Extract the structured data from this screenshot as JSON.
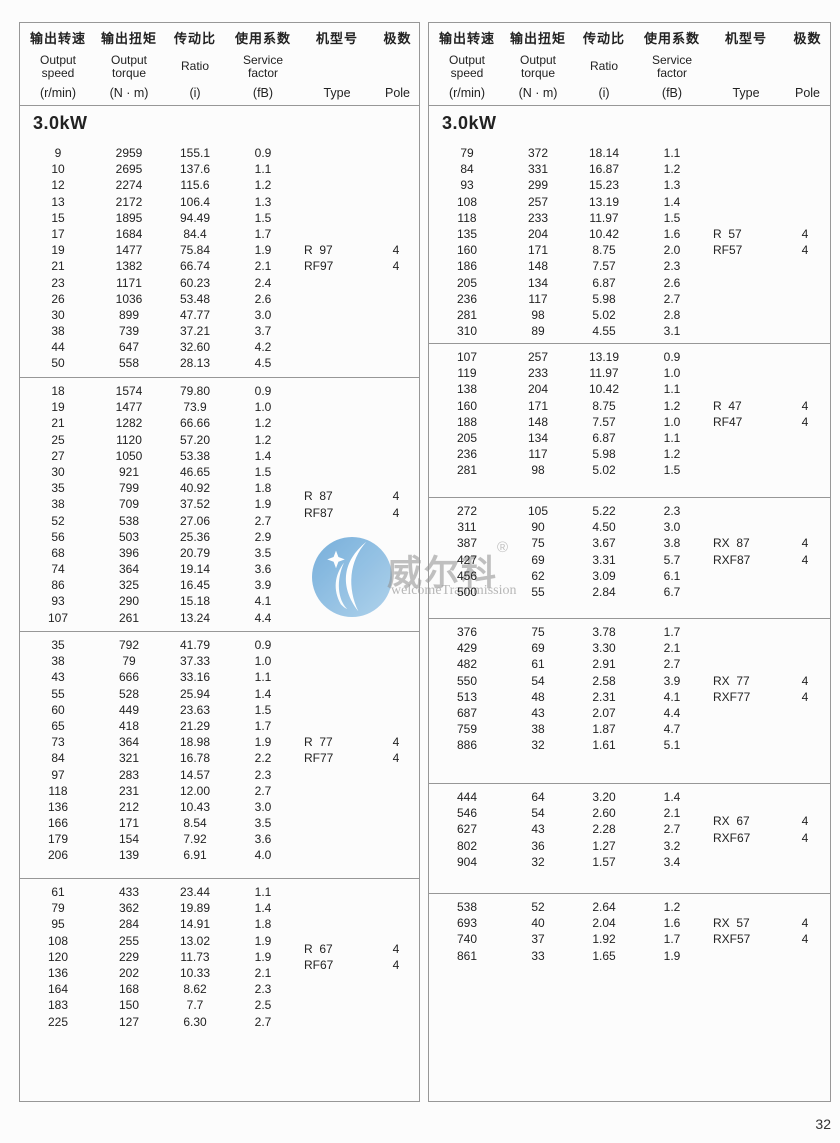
{
  "page": {
    "number": "32"
  },
  "header": {
    "columns": [
      {
        "zh": "输出转速",
        "en": "Output\nspeed",
        "unit": "(r/min)"
      },
      {
        "zh": "输出扭矩",
        "en": "Output\ntorque",
        "unit": "(N · m)"
      },
      {
        "zh": "传动比",
        "en": "Ratio",
        "unit": "(i)"
      },
      {
        "zh": "使用系数",
        "en": "Service\nfactor",
        "unit": "(fB)"
      },
      {
        "zh": "机型号",
        "en": "",
        "unit": "Type"
      },
      {
        "zh": "极数",
        "en": "",
        "unit": "Pole"
      }
    ]
  },
  "watermark": {
    "brand": "威尔科",
    "reg": "®",
    "subtitle": "welcomeTransmission",
    "logo_color": "#79b1dd"
  },
  "tables": [
    {
      "power": "3.0kW",
      "blocks": [
        {
          "rows": [
            [
              "9",
              "2959",
              "155.1",
              "0.9"
            ],
            [
              "10",
              "2695",
              "137.6",
              "1.1"
            ],
            [
              "12",
              "2274",
              "115.6",
              "1.2"
            ],
            [
              "13",
              "2172",
              "106.4",
              "1.3"
            ],
            [
              "15",
              "1895",
              "94.49",
              "1.5"
            ],
            [
              "17",
              "1684",
              "84.4",
              "1.7"
            ],
            [
              "19",
              "1477",
              "75.84",
              "1.9"
            ],
            [
              "21",
              "1382",
              "66.74",
              "2.1"
            ],
            [
              "23",
              "1171",
              "60.23",
              "2.4"
            ],
            [
              "26",
              "1036",
              "53.48",
              "2.6"
            ],
            [
              "30",
              "899",
              "47.77",
              "3.0"
            ],
            [
              "38",
              "739",
              "37.21",
              "3.7"
            ],
            [
              "44",
              "647",
              "32.60",
              "4.2"
            ],
            [
              "50",
              "558",
              "28.13",
              "4.5"
            ]
          ],
          "types": [
            {
              "label": "R  97",
              "pole": "4",
              "row": 6
            },
            {
              "label": "RF97",
              "pole": "4",
              "row": 7
            }
          ]
        },
        {
          "rows": [
            [
              "18",
              "1574",
              "79.80",
              "0.9"
            ],
            [
              "19",
              "1477",
              "73.9",
              "1.0"
            ],
            [
              "21",
              "1282",
              "66.66",
              "1.2"
            ],
            [
              "25",
              "1120",
              "57.20",
              "1.2"
            ],
            [
              "27",
              "1050",
              "53.38",
              "1.4"
            ],
            [
              "30",
              "921",
              "46.65",
              "1.5"
            ],
            [
              "35",
              "799",
              "40.92",
              "1.8"
            ],
            [
              "38",
              "709",
              "37.52",
              "1.9"
            ],
            [
              "52",
              "538",
              "27.06",
              "2.7"
            ],
            [
              "56",
              "503",
              "25.36",
              "2.9"
            ],
            [
              "68",
              "396",
              "20.79",
              "3.5"
            ],
            [
              "74",
              "364",
              "19.14",
              "3.6"
            ],
            [
              "86",
              "325",
              "16.45",
              "3.9"
            ],
            [
              "93",
              "290",
              "15.18",
              "4.1"
            ],
            [
              "107",
              "261",
              "13.24",
              "4.4"
            ]
          ],
          "types": [
            {
              "label": "R  87",
              "pole": "4",
              "row": 6.5
            },
            {
              "label": "RF87",
              "pole": "4",
              "row": 7.5
            }
          ]
        },
        {
          "rows": [
            [
              "35",
              "792",
              "41.79",
              "0.9"
            ],
            [
              "38",
              "79",
              "37.33",
              "1.0"
            ],
            [
              "43",
              "666",
              "33.16",
              "1.1"
            ],
            [
              "55",
              "528",
              "25.94",
              "1.4"
            ],
            [
              "60",
              "449",
              "23.63",
              "1.5"
            ],
            [
              "65",
              "418",
              "21.29",
              "1.7"
            ],
            [
              "73",
              "364",
              "18.98",
              "1.9"
            ],
            [
              "84",
              "321",
              "16.78",
              "2.2"
            ],
            [
              "97",
              "283",
              "14.57",
              "2.3"
            ],
            [
              "118",
              "231",
              "12.00",
              "2.7"
            ],
            [
              "136",
              "212",
              "10.43",
              "3.0"
            ],
            [
              "166",
              "171",
              "8.54",
              "3.5"
            ],
            [
              "179",
              "154",
              "7.92",
              "3.6"
            ],
            [
              "206",
              "139",
              "6.91",
              "4.0"
            ]
          ],
          "types": [
            {
              "label": "R  77",
              "pole": "4",
              "row": 6
            },
            {
              "label": "RF77",
              "pole": "4",
              "row": 7
            }
          ]
        },
        {
          "rows": [
            [
              "61",
              "433",
              "23.44",
              "1.1"
            ],
            [
              "79",
              "362",
              "19.89",
              "1.4"
            ],
            [
              "95",
              "284",
              "14.91",
              "1.8"
            ],
            [
              "108",
              "255",
              "13.02",
              "1.9"
            ],
            [
              "120",
              "229",
              "11.73",
              "1.9"
            ],
            [
              "136",
              "202",
              "10.33",
              "2.1"
            ],
            [
              "164",
              "168",
              "8.62",
              "2.3"
            ],
            [
              "183",
              "150",
              "7.7",
              "2.5"
            ],
            [
              "225",
              "127",
              "6.30",
              "2.7"
            ]
          ],
          "types": [
            {
              "label": "R  67",
              "pole": "4",
              "row": 3.5
            },
            {
              "label": "RF67",
              "pole": "4",
              "row": 4.5
            }
          ]
        }
      ]
    },
    {
      "power": "3.0kW",
      "blocks": [
        {
          "rows": [
            [
              "79",
              "372",
              "18.14",
              "1.1"
            ],
            [
              "84",
              "331",
              "16.87",
              "1.2"
            ],
            [
              "93",
              "299",
              "15.23",
              "1.3"
            ],
            [
              "108",
              "257",
              "13.19",
              "1.4"
            ],
            [
              "118",
              "233",
              "11.97",
              "1.5"
            ],
            [
              "135",
              "204",
              "10.42",
              "1.6"
            ],
            [
              "160",
              "171",
              "8.75",
              "2.0"
            ],
            [
              "186",
              "148",
              "7.57",
              "2.3"
            ],
            [
              "205",
              "134",
              "6.87",
              "2.6"
            ],
            [
              "236",
              "117",
              "5.98",
              "2.7"
            ],
            [
              "281",
              "98",
              "5.02",
              "2.8"
            ],
            [
              "310",
              "89",
              "4.55",
              "3.1"
            ]
          ],
          "types": [
            {
              "label": "R  57",
              "pole": "4",
              "row": 5
            },
            {
              "label": "RF57",
              "pole": "4",
              "row": 6
            }
          ]
        },
        {
          "rows": [
            [
              "107",
              "257",
              "13.19",
              "0.9"
            ],
            [
              "119",
              "233",
              "11.97",
              "1.0"
            ],
            [
              "138",
              "204",
              "10.42",
              "1.1"
            ],
            [
              "160",
              "171",
              "8.75",
              "1.2"
            ],
            [
              "188",
              "148",
              "7.57",
              "1.0"
            ],
            [
              "205",
              "134",
              "6.87",
              "1.1"
            ],
            [
              "236",
              "117",
              "5.98",
              "1.2"
            ],
            [
              "281",
              "98",
              "5.02",
              "1.5"
            ]
          ],
          "types": [
            {
              "label": "R  47",
              "pole": "4",
              "row": 3
            },
            {
              "label": "RF47",
              "pole": "4",
              "row": 4
            }
          ]
        },
        {
          "rows": [
            [
              "272",
              "105",
              "5.22",
              "2.3"
            ],
            [
              "311",
              "90",
              "4.50",
              "3.0"
            ],
            [
              "387",
              "75",
              "3.67",
              "3.8"
            ],
            [
              "427",
              "69",
              "3.31",
              "5.7"
            ],
            [
              "456",
              "62",
              "3.09",
              "6.1"
            ],
            [
              "500",
              "55",
              "2.84",
              "6.7"
            ]
          ],
          "types": [
            {
              "label": "RX  87",
              "pole": "4",
              "row": 2
            },
            {
              "label": "RXF87",
              "pole": "4",
              "row": 3
            }
          ]
        },
        {
          "rows": [
            [
              "376",
              "75",
              "3.78",
              "1.7"
            ],
            [
              "429",
              "69",
              "3.30",
              "2.1"
            ],
            [
              "482",
              "61",
              "2.91",
              "2.7"
            ],
            [
              "550",
              "54",
              "2.58",
              "3.9"
            ],
            [
              "513",
              "48",
              "2.31",
              "4.1"
            ],
            [
              "687",
              "43",
              "2.07",
              "4.4"
            ],
            [
              "759",
              "38",
              "1.87",
              "4.7"
            ],
            [
              "886",
              "32",
              "1.61",
              "5.1"
            ]
          ],
          "types": [
            {
              "label": "RX  77",
              "pole": "4",
              "row": 3
            },
            {
              "label": "RXF77",
              "pole": "4",
              "row": 4
            }
          ]
        },
        {
          "rows": [
            [
              "444",
              "64",
              "3.20",
              "1.4"
            ],
            [
              "546",
              "54",
              "2.60",
              "2.1"
            ],
            [
              "627",
              "43",
              "2.28",
              "2.7"
            ],
            [
              "802",
              "36",
              "1.27",
              "3.2"
            ],
            [
              "904",
              "32",
              "1.57",
              "3.4"
            ]
          ],
          "types": [
            {
              "label": "RX  67",
              "pole": "4",
              "row": 1.5
            },
            {
              "label": "RXF67",
              "pole": "4",
              "row": 2.5
            }
          ]
        },
        {
          "rows": [
            [
              "538",
              "52",
              "2.64",
              "1.2"
            ],
            [
              "693",
              "40",
              "2.04",
              "1.6"
            ],
            [
              "740",
              "37",
              "1.92",
              "1.7"
            ],
            [
              "861",
              "33",
              "1.65",
              "1.9"
            ]
          ],
          "types": [
            {
              "label": "RX  57",
              "pole": "4",
              "row": 1
            },
            {
              "label": "RXF57",
              "pole": "4",
              "row": 2
            }
          ]
        }
      ]
    }
  ]
}
